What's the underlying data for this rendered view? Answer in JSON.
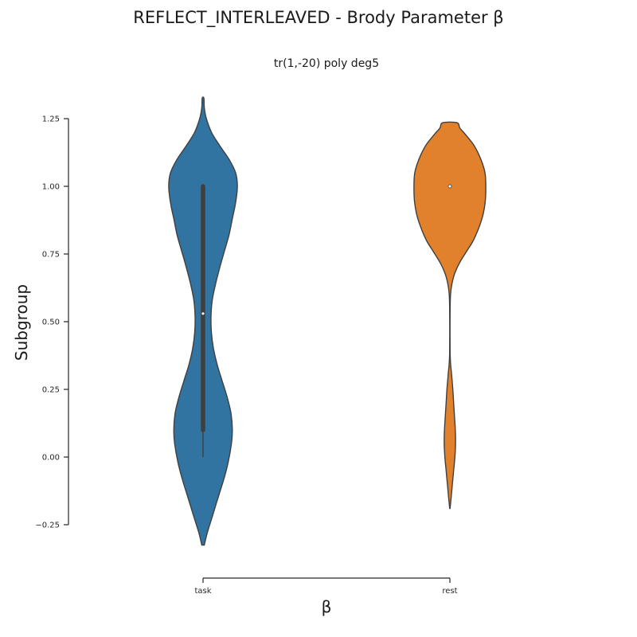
{
  "suptitle": "REFLECT_INTERLEAVED - Brody Parameter β",
  "chart_data": {
    "type": "violin",
    "title": "tr(1,-20) poly deg5",
    "xlabel": "β",
    "ylabel": "Subgroup",
    "categories": [
      "task",
      "rest"
    ],
    "ylim": [
      -0.32,
      1.32
    ],
    "yticks": [
      -0.25,
      0.0,
      0.25,
      0.5,
      0.75,
      1.0,
      1.25
    ],
    "ytick_labels": [
      "−0.25",
      "0.00",
      "0.25",
      "0.50",
      "0.75",
      "1.00",
      "1.25"
    ],
    "grid": false,
    "series": [
      {
        "category": "task",
        "color": "#3274a1",
        "median": 0.53,
        "q1": 0.1,
        "q3": 1.0,
        "whisker_low": 0.0,
        "whisker_high": 1.0,
        "density": [
          [
            -0.325,
            0.015
          ],
          [
            -0.28,
            0.05
          ],
          [
            -0.22,
            0.11
          ],
          [
            -0.15,
            0.18
          ],
          [
            -0.08,
            0.25
          ],
          [
            -0.02,
            0.3
          ],
          [
            0.05,
            0.34
          ],
          [
            0.1,
            0.35
          ],
          [
            0.16,
            0.335
          ],
          [
            0.22,
            0.29
          ],
          [
            0.28,
            0.23
          ],
          [
            0.34,
            0.17
          ],
          [
            0.4,
            0.125
          ],
          [
            0.46,
            0.1
          ],
          [
            0.52,
            0.095
          ],
          [
            0.58,
            0.11
          ],
          [
            0.64,
            0.15
          ],
          [
            0.7,
            0.2
          ],
          [
            0.76,
            0.255
          ],
          [
            0.82,
            0.31
          ],
          [
            0.88,
            0.35
          ],
          [
            0.94,
            0.39
          ],
          [
            1.0,
            0.41
          ],
          [
            1.05,
            0.39
          ],
          [
            1.1,
            0.31
          ],
          [
            1.15,
            0.2
          ],
          [
            1.2,
            0.1
          ],
          [
            1.25,
            0.04
          ],
          [
            1.29,
            0.015
          ],
          [
            1.325,
            0.01
          ]
        ]
      },
      {
        "category": "rest",
        "color": "#e1812c",
        "median": 1.0,
        "q1": 1.0,
        "q3": 1.0,
        "whisker_low": 1.0,
        "whisker_high": 1.0,
        "density": [
          [
            -0.19,
            0.002
          ],
          [
            -0.15,
            0.015
          ],
          [
            -0.1,
            0.03
          ],
          [
            -0.05,
            0.045
          ],
          [
            0.0,
            0.06
          ],
          [
            0.05,
            0.068
          ],
          [
            0.1,
            0.065
          ],
          [
            0.15,
            0.055
          ],
          [
            0.2,
            0.045
          ],
          [
            0.25,
            0.035
          ],
          [
            0.3,
            0.022
          ],
          [
            0.34,
            0.01
          ],
          [
            0.38,
            0.003
          ],
          [
            0.45,
            0.002
          ],
          [
            0.55,
            0.003
          ],
          [
            0.6,
            0.008
          ],
          [
            0.64,
            0.025
          ],
          [
            0.68,
            0.06
          ],
          [
            0.72,
            0.12
          ],
          [
            0.76,
            0.2
          ],
          [
            0.8,
            0.28
          ],
          [
            0.85,
            0.35
          ],
          [
            0.9,
            0.4
          ],
          [
            0.95,
            0.425
          ],
          [
            1.0,
            0.43
          ],
          [
            1.05,
            0.42
          ],
          [
            1.1,
            0.37
          ],
          [
            1.15,
            0.29
          ],
          [
            1.19,
            0.19
          ],
          [
            1.215,
            0.12
          ],
          [
            1.235,
            0.085
          ]
        ]
      }
    ]
  }
}
